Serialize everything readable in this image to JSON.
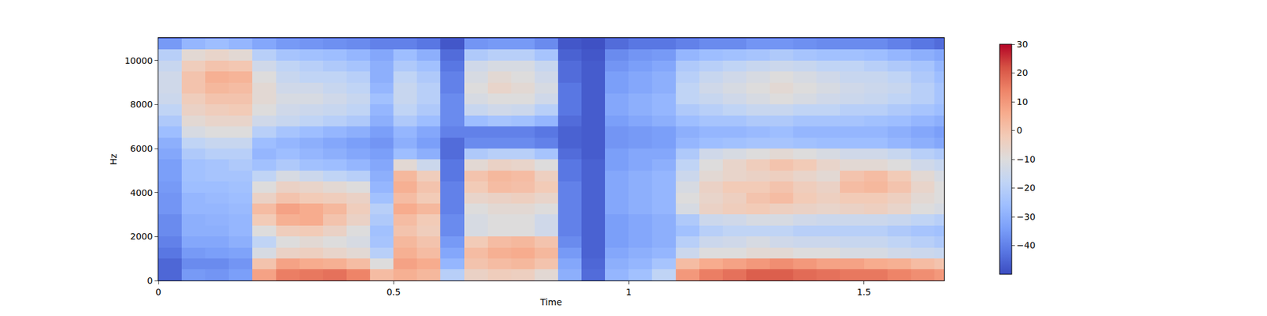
{
  "chart_data": {
    "type": "heatmap",
    "x_label": "Time",
    "y_label": "Hz",
    "x": [
      0.025,
      0.075,
      0.125,
      0.175,
      0.225,
      0.275,
      0.325,
      0.375,
      0.425,
      0.475,
      0.525,
      0.575,
      0.625,
      0.675,
      0.725,
      0.775,
      0.825,
      0.875,
      0.925,
      0.975,
      1.025,
      1.075,
      1.125,
      1.175,
      1.225,
      1.275,
      1.325,
      1.375,
      1.425,
      1.475,
      1.525,
      1.575,
      1.625,
      1.675
    ],
    "y": [
      250,
      750,
      1250,
      1750,
      2250,
      2750,
      3250,
      3750,
      4250,
      4750,
      5250,
      5750,
      6250,
      6750,
      7250,
      7750,
      8250,
      8750,
      9250,
      9750,
      10250,
      10750
    ],
    "xlim": [
      0,
      1.67
    ],
    "ylim": [
      0,
      11025
    ],
    "xticks": [
      0,
      0.5,
      1,
      1.5
    ],
    "yticks": [
      0,
      2000,
      4000,
      6000,
      8000,
      10000
    ],
    "zlim": [
      -50,
      30
    ],
    "zticks": [
      {
        "value": -40,
        "label": "−40"
      },
      {
        "value": -30,
        "label": "−30"
      },
      {
        "value": -20,
        "label": "−20"
      },
      {
        "value": -10,
        "label": "−10"
      },
      0,
      10,
      20,
      30
    ],
    "z": [
      [
        -45,
        -45,
        -42,
        -40,
        -38,
        -38,
        -36,
        -36,
        -35,
        -34,
        -34,
        -32,
        -30,
        -26,
        -22,
        -18,
        -15,
        -14,
        -14,
        -16,
        -20,
        -35
      ],
      [
        -35,
        -38,
        -35,
        -32,
        -30,
        -30,
        -28,
        -28,
        -26,
        -25,
        -25,
        -22,
        -18,
        -12,
        -8,
        -5,
        -3,
        0,
        0,
        -3,
        -8,
        -28
      ],
      [
        -36,
        -38,
        -34,
        -32,
        -30,
        -29,
        -28,
        -27,
        -26,
        -24,
        -24,
        -20,
        -16,
        -10,
        -6,
        -3,
        0,
        3,
        5,
        0,
        -6,
        -26
      ],
      [
        -34,
        -36,
        -33,
        -30,
        -28,
        -28,
        -27,
        -26,
        -25,
        -24,
        -22,
        -20,
        -16,
        -10,
        -6,
        -2,
        0,
        2,
        4,
        -1,
        -8,
        -28
      ],
      [
        8,
        0,
        -12,
        -18,
        -10,
        -2,
        2,
        -5,
        -10,
        -18,
        -25,
        -28,
        -26,
        -20,
        -14,
        -10,
        -8,
        -8,
        -10,
        -14,
        -20,
        -32
      ],
      [
        15,
        8,
        -5,
        -10,
        -3,
        5,
        8,
        0,
        -5,
        -12,
        -22,
        -26,
        -28,
        -24,
        -16,
        -14,
        -12,
        -14,
        -16,
        -18,
        -24,
        -35
      ],
      [
        16,
        6,
        -4,
        -8,
        -2,
        6,
        6,
        -2,
        -6,
        -15,
        -25,
        -28,
        -30,
        -26,
        -18,
        -15,
        -12,
        -14,
        -18,
        -20,
        -25,
        -36
      ],
      [
        17,
        5,
        -6,
        -10,
        -5,
        0,
        3,
        -3,
        -8,
        -18,
        -26,
        -30,
        -32,
        -28,
        -20,
        -16,
        -14,
        -16,
        -18,
        -22,
        -26,
        -37
      ],
      [
        14,
        2,
        -8,
        -12,
        -10,
        -5,
        -3,
        -5,
        -10,
        -20,
        -28,
        -32,
        -34,
        -30,
        -22,
        -18,
        -16,
        -18,
        -20,
        -24,
        -28,
        -38
      ],
      [
        2,
        -10,
        -20,
        -24,
        -25,
        -22,
        -20,
        -25,
        -28,
        -30,
        -32,
        -34,
        -36,
        -34,
        -30,
        -28,
        -25,
        -28,
        -30,
        -30,
        -32,
        -40
      ],
      [
        5,
        8,
        5,
        3,
        0,
        2,
        6,
        2,
        5,
        3,
        -8,
        -26,
        -30,
        -28,
        -22,
        -18,
        -16,
        -16,
        -18,
        -22,
        -26,
        -40
      ],
      [
        3,
        6,
        2,
        0,
        -3,
        -2,
        3,
        -2,
        0,
        -3,
        -15,
        -30,
        -34,
        -32,
        -26,
        -22,
        -20,
        -20,
        -22,
        -25,
        -30,
        -42
      ],
      [
        -20,
        -28,
        -32,
        -35,
        -38,
        -38,
        -40,
        -40,
        -40,
        -42,
        -42,
        -44,
        -44,
        -40,
        -38,
        -38,
        -38,
        -40,
        -40,
        -42,
        -44,
        -48
      ],
      [
        -5,
        0,
        2,
        -2,
        -12,
        -12,
        -10,
        -6,
        -2,
        0,
        -8,
        -22,
        -38,
        -40,
        -26,
        -16,
        -12,
        -10,
        -12,
        -14,
        -22,
        -36
      ],
      [
        -3,
        2,
        5,
        2,
        -10,
        -10,
        -8,
        -5,
        2,
        3,
        -5,
        -20,
        -38,
        -40,
        -24,
        -14,
        -10,
        -6,
        -8,
        -12,
        -20,
        -35
      ],
      [
        -4,
        3,
        6,
        3,
        -10,
        -10,
        -8,
        -4,
        1,
        2,
        -6,
        -20,
        -38,
        -40,
        -25,
        -15,
        -10,
        -8,
        -10,
        -12,
        -20,
        -35
      ],
      [
        -8,
        0,
        3,
        0,
        -14,
        -14,
        -10,
        -6,
        -2,
        -4,
        -10,
        -24,
        -40,
        -42,
        -28,
        -20,
        -14,
        -12,
        -14,
        -16,
        -24,
        -38
      ],
      [
        -30,
        -32,
        -35,
        -38,
        -40,
        -40,
        -40,
        -40,
        -40,
        -42,
        -42,
        -44,
        -46,
        -46,
        -44,
        -42,
        -42,
        -42,
        -44,
        -44,
        -46,
        -48
      ],
      [
        -44,
        -45,
        -46,
        -46,
        -46,
        -46,
        -46,
        -46,
        -46,
        -46,
        -46,
        -47,
        -47,
        -47,
        -47,
        -47,
        -47,
        -47,
        -47,
        -47,
        -48,
        -49
      ],
      [
        -28,
        -30,
        -32,
        -34,
        -34,
        -34,
        -32,
        -32,
        -32,
        -32,
        -34,
        -34,
        -36,
        -36,
        -34,
        -32,
        -32,
        -34,
        -34,
        -36,
        -38,
        -44
      ],
      [
        -25,
        -28,
        -30,
        -32,
        -32,
        -32,
        -30,
        -30,
        -30,
        -30,
        -32,
        -32,
        -35,
        -35,
        -32,
        -30,
        -30,
        -32,
        -32,
        -34,
        -36,
        -42
      ],
      [
        -18,
        -24,
        -28,
        -30,
        -30,
        -30,
        -28,
        -28,
        -28,
        -28,
        -30,
        -32,
        -34,
        -34,
        -30,
        -28,
        -28,
        -30,
        -30,
        -32,
        -35,
        -42
      ],
      [
        10,
        2,
        -15,
        -20,
        -25,
        -22,
        -12,
        -10,
        -12,
        -15,
        -18,
        -22,
        -28,
        -30,
        -26,
        -22,
        -18,
        -18,
        -20,
        -22,
        -28,
        -40
      ],
      [
        15,
        6,
        -10,
        -15,
        -20,
        -15,
        -5,
        -6,
        -5,
        -8,
        -10,
        -14,
        -26,
        -28,
        -24,
        -20,
        -16,
        -14,
        -16,
        -20,
        -26,
        -38
      ],
      [
        17,
        8,
        -10,
        -14,
        -18,
        -14,
        -3,
        -4,
        -2,
        -6,
        -6,
        -12,
        -25,
        -28,
        -24,
        -18,
        -14,
        -12,
        -14,
        -18,
        -25,
        -38
      ],
      [
        20,
        10,
        -8,
        -12,
        -18,
        -12,
        -2,
        0,
        -2,
        -5,
        -3,
        -10,
        -24,
        -27,
        -22,
        -16,
        -12,
        -10,
        -12,
        -16,
        -24,
        -36
      ],
      [
        20,
        12,
        -8,
        -14,
        -18,
        -12,
        -4,
        2,
        0,
        -4,
        0,
        -8,
        -24,
        -26,
        -22,
        -16,
        -10,
        -8,
        -10,
        -15,
        -22,
        -36
      ],
      [
        18,
        10,
        -10,
        -15,
        -20,
        -14,
        -5,
        -2,
        -3,
        -6,
        -2,
        -10,
        -25,
        -28,
        -24,
        -18,
        -12,
        -10,
        -12,
        -16,
        -24,
        -37
      ],
      [
        17,
        8,
        -10,
        -15,
        -20,
        -15,
        -6,
        -4,
        -5,
        -8,
        -6,
        -12,
        -26,
        -28,
        -24,
        -18,
        -14,
        -12,
        -14,
        -18,
        -25,
        -38
      ],
      [
        16,
        8,
        -12,
        -16,
        -20,
        -15,
        -5,
        -2,
        2,
        0,
        -8,
        -14,
        -26,
        -28,
        -24,
        -20,
        -15,
        -14,
        -16,
        -18,
        -25,
        -38
      ],
      [
        16,
        6,
        -12,
        -16,
        -20,
        -15,
        -4,
        -2,
        3,
        2,
        -8,
        -14,
        -26,
        -28,
        -25,
        -20,
        -16,
        -15,
        -16,
        -20,
        -26,
        -38
      ],
      [
        14,
        5,
        -14,
        -18,
        -22,
        -16,
        -6,
        -4,
        0,
        -2,
        -10,
        -16,
        -28,
        -30,
        -26,
        -22,
        -18,
        -16,
        -18,
        -22,
        -28,
        -40
      ],
      [
        12,
        2,
        -15,
        -20,
        -24,
        -18,
        -10,
        -8,
        -6,
        -8,
        -14,
        -20,
        -30,
        -32,
        -28,
        -24,
        -20,
        -20,
        -22,
        -24,
        -30,
        -42
      ],
      [
        10,
        0,
        -16,
        -22,
        -25,
        -20,
        -12,
        -10,
        -10,
        -12,
        -16,
        -22,
        -32,
        -34,
        -30,
        -26,
        -24,
        -24,
        -26,
        -28,
        -32,
        -44
      ]
    ]
  }
}
